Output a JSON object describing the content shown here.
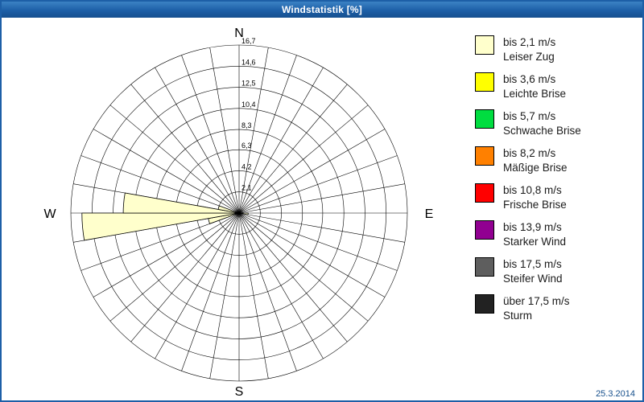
{
  "window": {
    "title": "Windstatistik [%]",
    "date": "25.3.2014"
  },
  "chart_data": {
    "type": "bar",
    "variant": "wind-rose-polar",
    "title": "Windstatistik [%]",
    "units": "%",
    "sector_width_deg": 10,
    "rmax": 16.7,
    "radial_ticks": [
      2.1,
      4.2,
      6.3,
      8.3,
      10.4,
      12.5,
      14.6,
      16.7
    ],
    "radial_tick_labels": [
      "2,1",
      "4,2",
      "6,3",
      "8,3",
      "10,4",
      "12,5",
      "14,6",
      "16,7"
    ],
    "compass_labels": {
      "n": "N",
      "e": "E",
      "s": "S",
      "w": "W"
    },
    "grid": {
      "rings": 8,
      "spokes": 36,
      "on": true
    },
    "series": [
      {
        "name": "bis 2,1 m/s",
        "color": "#FFFFCC",
        "points": [
          {
            "dir_deg": 255,
            "value": 3.1
          },
          {
            "dir_deg": 265,
            "value": 15.6
          },
          {
            "dir_deg": 275,
            "value": 11.5
          },
          {
            "dir_deg": 285,
            "value": 2.1
          },
          {
            "dir_deg": 95,
            "value": 0.9
          }
        ]
      }
    ]
  },
  "legend": {
    "items": [
      {
        "speed": "bis 2,1 m/s",
        "name": "Leiser Zug",
        "color": "#FFFFCC"
      },
      {
        "speed": "bis 3,6 m/s",
        "name": "Leichte Brise",
        "color": "#FFFF00"
      },
      {
        "speed": "bis 5,7 m/s",
        "name": "Schwache Brise",
        "color": "#00DD40"
      },
      {
        "speed": "bis 8,2 m/s",
        "name": "Mäßige Brise",
        "color": "#FF8000"
      },
      {
        "speed": "bis 10,8 m/s",
        "name": "Frische Brise",
        "color": "#FF0000"
      },
      {
        "speed": "bis 13,9 m/s",
        "name": "Starker Wind",
        "color": "#910091"
      },
      {
        "speed": "bis 17,5 m/s",
        "name": "Steifer Wind",
        "color": "#5E5E5E"
      },
      {
        "speed": "über 17,5 m/s",
        "name": "Sturm",
        "color": "#222222"
      }
    ]
  }
}
